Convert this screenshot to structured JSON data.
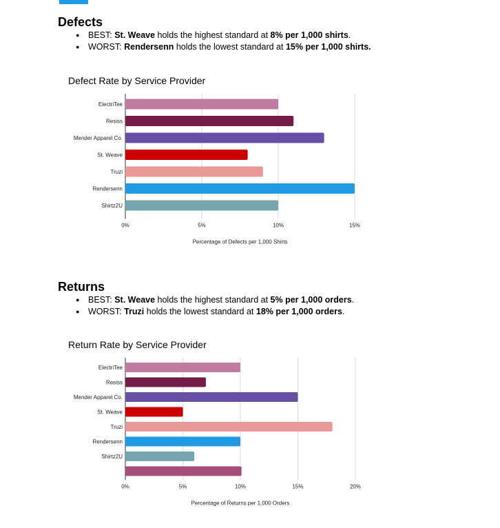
{
  "accent_color": "#1f9be6",
  "defects": {
    "heading": "Defects",
    "bullets": [
      {
        "prefix": "BEST: ",
        "name": "St. Weave",
        "mid": " holds the highest standard at ",
        "value": "8% per 1,000 shirts",
        "suffix": "."
      },
      {
        "prefix": "WORST: ",
        "name": "Rendersenn",
        "mid": " holds the lowest standard at ",
        "value": "15% per 1,000 shirts.",
        "suffix": ""
      }
    ]
  },
  "returns": {
    "heading": "Returns",
    "bullets": [
      {
        "prefix": "BEST: ",
        "name": "St. Weave",
        "mid": " holds the highest standard at ",
        "value": "5% per 1,000 orders",
        "suffix": "."
      },
      {
        "prefix": "WORST: ",
        "name": "Truzi",
        "mid": " holds the lowest standard at ",
        "value": "18% per 1,000 orders",
        "suffix": "."
      }
    ]
  },
  "chart_data": [
    {
      "type": "bar",
      "orientation": "horizontal",
      "title": "Defect Rate by Service Provider",
      "xlabel": "Percentage of Defects per 1,000 Shirts",
      "ylabel": "",
      "xlim": [
        0,
        15
      ],
      "ticks": [
        "0%",
        "5%",
        "10%",
        "15%"
      ],
      "tick_values": [
        0,
        5,
        10,
        15
      ],
      "grid": true,
      "categories": [
        "ElectriTee",
        "Resiss",
        "Mender Apparel Co.",
        "St. Weave",
        "Truzi",
        "Rendersenn",
        "Shirtz2U"
      ],
      "values": [
        10,
        11,
        13,
        8,
        9,
        15,
        10
      ],
      "colors": [
        "#c27ba0",
        "#741b47",
        "#674ea7",
        "#cc0000",
        "#ea9999",
        "#1f9be6",
        "#76a5af"
      ]
    },
    {
      "type": "bar",
      "orientation": "horizontal",
      "title": "Return Rate by Service Provider",
      "xlabel": "Percentage of Returns per 1,000 Orders",
      "ylabel": "",
      "xlim": [
        0,
        20
      ],
      "ticks": [
        "0%",
        "5%",
        "10%",
        "15%",
        "20%"
      ],
      "tick_values": [
        0,
        5,
        10,
        15,
        20
      ],
      "grid": true,
      "categories": [
        "ElectriTee",
        "Resiss",
        "Mender Apparel Co.",
        "St. Weave",
        "Truzi",
        "Rendersenn",
        "Shirtz2U",
        ""
      ],
      "values": [
        10,
        7,
        15,
        5,
        18,
        10,
        6,
        10.1
      ],
      "colors": [
        "#c27ba0",
        "#741b47",
        "#674ea7",
        "#cc0000",
        "#ea9999",
        "#1f9be6",
        "#76a5af",
        "#a64d79"
      ]
    }
  ]
}
